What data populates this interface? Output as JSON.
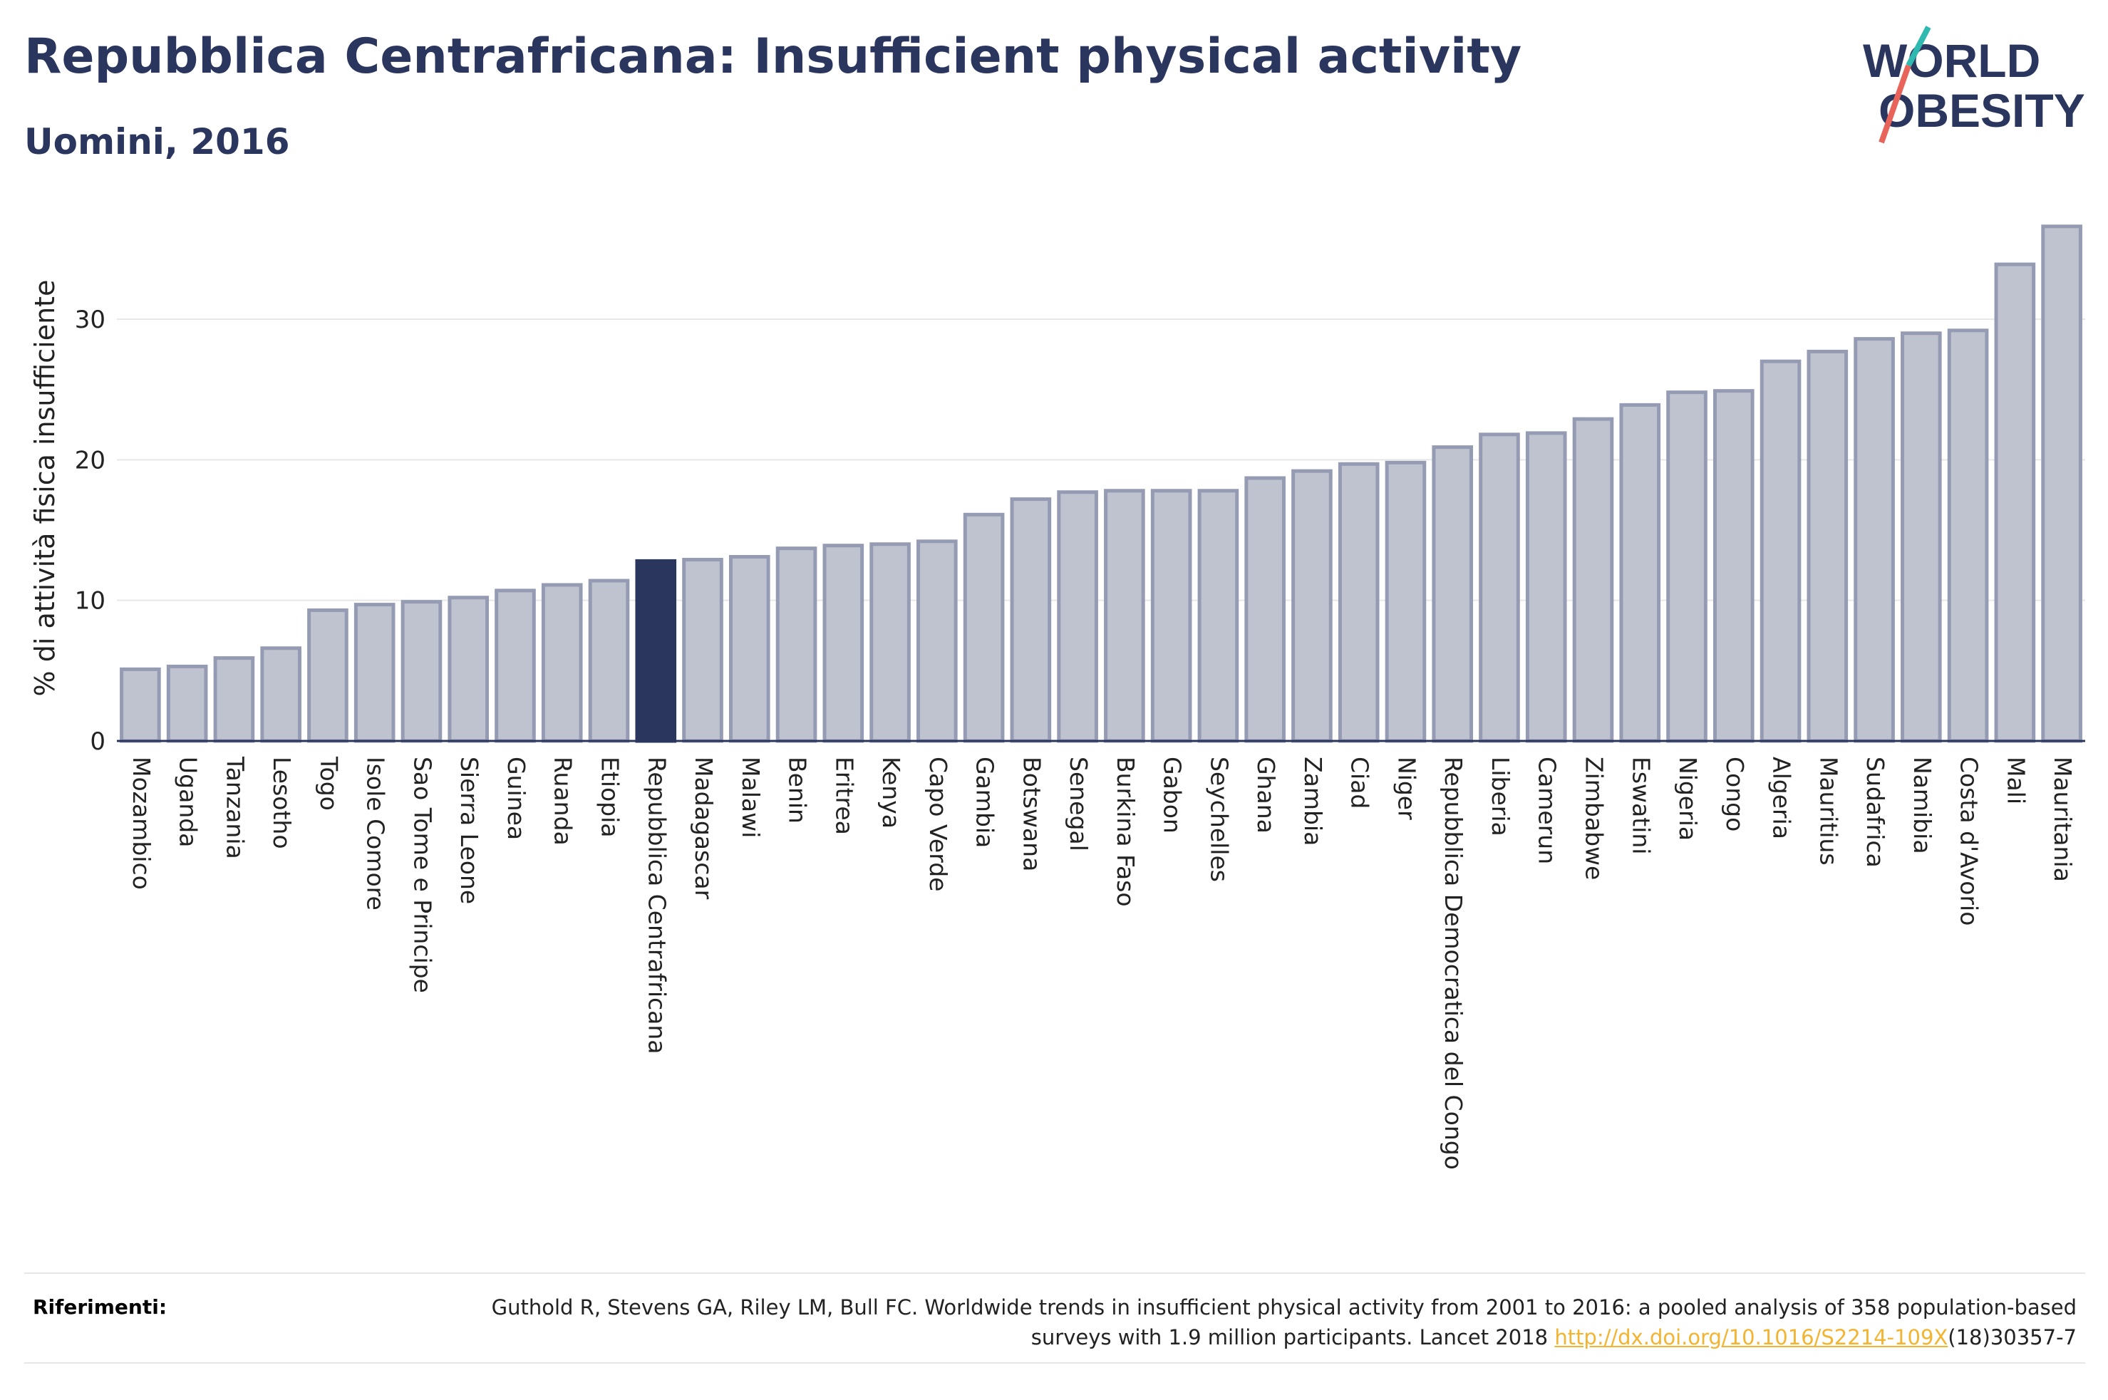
{
  "header": {
    "title": "Repubblica Centrafricana: Insufficient physical activity",
    "subtitle": "Uomini, 2016"
  },
  "logo": {
    "line1": "WORLD",
    "line2": "OBESITY",
    "colors": {
      "text": "#2b365e",
      "slash_top": "#2fb9b0",
      "slash_bottom": "#e8645a"
    }
  },
  "chart_data": {
    "type": "bar",
    "ylabel": "% di attività fisica insufficiente",
    "xlabel": "",
    "ylim": [
      0,
      37.5
    ],
    "yticks": [
      0,
      10,
      20,
      30
    ],
    "grid": true,
    "highlight": "Repubblica Centrafricana",
    "colors": {
      "bar": "#bfc3cf",
      "bar_border": "#959bb3",
      "highlight": "#2b365e",
      "grid": "#e8e8e8",
      "axis": "#2b365e"
    },
    "categories": [
      "Mozambico",
      "Uganda",
      "Tanzania",
      "Lesotho",
      "Togo",
      "Isole Comore",
      "Sao Tome e Principe",
      "Sierra Leone",
      "Guinea",
      "Ruanda",
      "Etiopia",
      "Repubblica Centrafricana",
      "Madagascar",
      "Malawi",
      "Benin",
      "Eritrea",
      "Kenya",
      "Capo Verde",
      "Gambia",
      "Botswana",
      "Senegal",
      "Burkina Faso",
      "Gabon",
      "Seychelles",
      "Ghana",
      "Zambia",
      "Ciad",
      "Niger",
      "Repubblica Democratica del Congo",
      "Liberia",
      "Camerun",
      "Zimbabwe",
      "Eswatini",
      "Nigeria",
      "Congo",
      "Algeria",
      "Mauritius",
      "Sudafrica",
      "Namibia",
      "Costa d'Avorio",
      "Mali",
      "Mauritania"
    ],
    "values": [
      5.1,
      5.3,
      5.9,
      6.6,
      9.3,
      9.7,
      9.9,
      10.2,
      10.7,
      11.1,
      11.4,
      12.8,
      12.9,
      13.1,
      13.7,
      13.9,
      14.0,
      14.2,
      16.1,
      17.2,
      17.7,
      17.8,
      17.8,
      17.8,
      18.7,
      19.2,
      19.7,
      19.8,
      20.9,
      21.8,
      21.9,
      22.9,
      23.9,
      24.8,
      24.9,
      27.0,
      27.7,
      28.6,
      29.0,
      29.2,
      33.9,
      36.6
    ]
  },
  "references": {
    "label": "Riferimenti:",
    "text_before": "Guthold R, Stevens GA, Riley LM, Bull FC. Worldwide trends in insufficient physical activity from 2001 to 2016: a pooled analysis of 358 population-based surveys with 1.9 million participants. Lancet 2018 ",
    "link": "http://dx.doi.org/10.1016/S2214-109X",
    "text_after": "(18)30357-7"
  }
}
